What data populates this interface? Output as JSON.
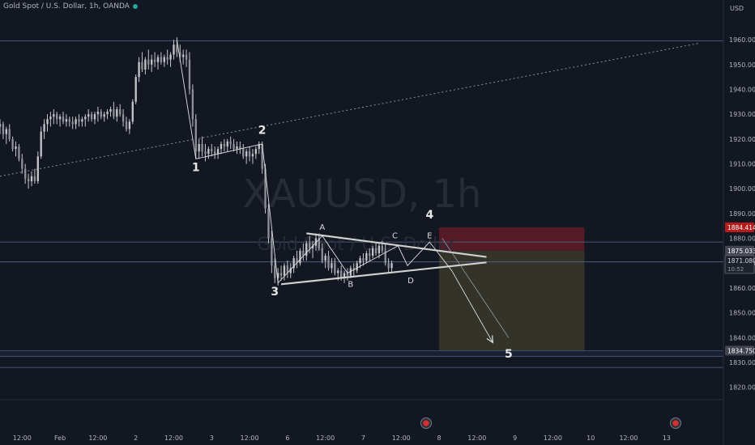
{
  "header": {
    "symbol_line": "Gold Spot / U.S. Dollar, 1h, OANDA"
  },
  "currency": "USD",
  "watermark": {
    "symbol": "XAUUSD, 1h",
    "description": "Gold Spot / U.S. Dollar"
  },
  "colors": {
    "background": "#131722",
    "candle": "#c4c4c8",
    "grid_line": "#5b6a8c",
    "stop_zone": "#6e1c2a",
    "target_zone": "#3a382b",
    "stop_tag": "#b71c1c",
    "pattern_line": "#d0d0d0",
    "wave_text": "#e6e6e6"
  },
  "chart_data": {
    "type": "candlestick",
    "title": "Gold Spot / U.S. Dollar, 1h, OANDA",
    "y_axis": {
      "unit": "USD",
      "ticks": [
        1820,
        1830,
        1840,
        1850,
        1860,
        1870,
        1880,
        1890,
        1900,
        1910,
        1920,
        1930,
        1940,
        1950,
        1960
      ],
      "tick_labels": [
        "1820.000",
        "1830.000",
        "1840.000",
        "1850.000",
        "1860.000",
        "1870.000",
        "1880.000",
        "1890.000",
        "1900.000",
        "1910.000",
        "1920.000",
        "1930.000",
        "1940.000",
        "1950.000",
        "1960.000"
      ],
      "range": [
        1815,
        1976
      ]
    },
    "x_axis": {
      "range": [
        0,
        229
      ],
      "ticks": [
        {
          "t": 7,
          "label": "12:00"
        },
        {
          "t": 19,
          "label": "Feb"
        },
        {
          "t": 31,
          "label": "12:00"
        },
        {
          "t": 43,
          "label": "2"
        },
        {
          "t": 55,
          "label": "12:00"
        },
        {
          "t": 67,
          "label": "3"
        },
        {
          "t": 79,
          "label": "12:00"
        },
        {
          "t": 91,
          "label": "6"
        },
        {
          "t": 103,
          "label": "12:00"
        },
        {
          "t": 115,
          "label": "7"
        },
        {
          "t": 127,
          "label": "12:00"
        },
        {
          "t": 139,
          "label": "8"
        },
        {
          "t": 151,
          "label": "12:00"
        },
        {
          "t": 163,
          "label": "9"
        },
        {
          "t": 175,
          "label": "12:00"
        },
        {
          "t": 187,
          "label": "10"
        },
        {
          "t": 199,
          "label": "12:00"
        },
        {
          "t": 211,
          "label": "13"
        }
      ]
    },
    "price_tags": [
      {
        "value": 1884.414,
        "label": "1884.414",
        "style": "stop"
      },
      {
        "value": 1875.033,
        "label": "1875.033",
        "style": "level"
      },
      {
        "value": 1871.08,
        "label": "1871.080",
        "sub": "10:52",
        "style": "last"
      },
      {
        "value": 1834.75,
        "label": "1834.750",
        "style": "target"
      }
    ],
    "horizontal_levels": [
      1959.5,
      1878.5,
      1870.5,
      1834.75,
      1832.5,
      1828.0
    ],
    "trendline": {
      "from": {
        "t": 0,
        "v": 1905
      },
      "to": {
        "t": 221,
        "v": 1958.5
      }
    },
    "position": {
      "t_start": 139,
      "t_end": 185,
      "entry": 1875.033,
      "stop": 1884.414,
      "target": 1834.75
    },
    "triangle": {
      "upper": [
        {
          "t": 97,
          "v": 1882
        },
        {
          "t": 154,
          "v": 1872.5
        }
      ],
      "lower": [
        {
          "t": 89,
          "v": 1861.5
        },
        {
          "t": 154,
          "v": 1870.3
        }
      ]
    },
    "wave_path": [
      {
        "t": 56,
        "v": 1960
      },
      {
        "t": 62,
        "v": 1912
      },
      {
        "t": 83,
        "v": 1918
      },
      {
        "t": 88,
        "v": 1862
      },
      {
        "t": 102,
        "v": 1881
      },
      {
        "t": 110,
        "v": 1866
      },
      {
        "t": 126,
        "v": 1877
      },
      {
        "t": 129,
        "v": 1869
      },
      {
        "t": 136,
        "v": 1878.5
      },
      {
        "t": 143,
        "v": 1867
      },
      {
        "t": 156,
        "v": 1838
      }
    ],
    "projection_line": {
      "from": {
        "t": 140,
        "v": 1880
      },
      "to": {
        "t": 161,
        "v": 1840
      }
    },
    "wave_labels": [
      {
        "text": "1",
        "t": 62,
        "v": 1907
      },
      {
        "text": "2",
        "t": 83,
        "v": 1922
      },
      {
        "text": "3",
        "t": 87,
        "v": 1857
      },
      {
        "text": "4",
        "t": 136,
        "v": 1888
      },
      {
        "text": "5",
        "t": 161,
        "v": 1832
      }
    ],
    "pattern_labels": [
      {
        "text": "A",
        "t": 102,
        "v": 1883.5
      },
      {
        "text": "B",
        "t": 111,
        "v": 1860.5
      },
      {
        "text": "C",
        "t": 125,
        "v": 1880
      },
      {
        "text": "D",
        "t": 130,
        "v": 1862
      },
      {
        "text": "E",
        "t": 136,
        "v": 1880
      }
    ],
    "series": [
      {
        "values": [
          [
            1925,
            1928,
            1922,
            1926
          ],
          [
            1926,
            1927,
            1920,
            1922
          ],
          [
            1922,
            1925,
            1918,
            1924
          ],
          [
            1924,
            1926,
            1919,
            1920
          ],
          [
            1920,
            1921,
            1915,
            1916
          ],
          [
            1916,
            1919,
            1913,
            1917
          ],
          [
            1917,
            1918,
            1911,
            1912
          ],
          [
            1912,
            1914,
            1906,
            1908
          ],
          [
            1908,
            1910,
            1902,
            1904
          ],
          [
            1904,
            1906,
            1900,
            1903
          ],
          [
            1903,
            1907,
            1901,
            1905
          ],
          [
            1905,
            1908,
            1902,
            1903
          ],
          [
            1903,
            1915,
            1902,
            1913
          ],
          [
            1913,
            1925,
            1912,
            1923
          ],
          [
            1923,
            1928,
            1920,
            1926
          ],
          [
            1926,
            1930,
            1923,
            1928
          ],
          [
            1928,
            1931,
            1925,
            1929
          ],
          [
            1929,
            1932,
            1926,
            1930
          ],
          [
            1930,
            1931,
            1926,
            1928
          ],
          [
            1928,
            1930,
            1925,
            1929
          ],
          [
            1929,
            1931,
            1926,
            1927
          ],
          [
            1927,
            1930,
            1925,
            1928
          ],
          [
            1928,
            1929,
            1925,
            1927
          ],
          [
            1927,
            1929,
            1924,
            1926
          ],
          [
            1926,
            1929,
            1924,
            1928
          ],
          [
            1928,
            1930,
            1925,
            1927
          ],
          [
            1927,
            1929,
            1925,
            1928
          ],
          [
            1928,
            1930,
            1925,
            1929
          ],
          [
            1929,
            1932,
            1927,
            1930
          ],
          [
            1930,
            1931,
            1927,
            1928
          ],
          [
            1928,
            1931,
            1926,
            1930
          ],
          [
            1930,
            1933,
            1927,
            1931
          ],
          [
            1931,
            1932,
            1928,
            1929
          ],
          [
            1929,
            1931,
            1927,
            1930
          ],
          [
            1930,
            1932,
            1928,
            1931
          ],
          [
            1931,
            1933,
            1929,
            1932
          ],
          [
            1932,
            1935,
            1928,
            1929
          ],
          [
            1929,
            1933,
            1927,
            1932
          ],
          [
            1932,
            1934,
            1929,
            1930
          ],
          [
            1930,
            1932,
            1925,
            1927
          ],
          [
            1927,
            1929,
            1923,
            1924
          ],
          [
            1924,
            1928,
            1922,
            1927
          ],
          [
            1927,
            1936,
            1926,
            1935
          ],
          [
            1935,
            1946,
            1934,
            1945
          ],
          [
            1945,
            1953,
            1943,
            1951
          ],
          [
            1951,
            1955,
            1947,
            1948
          ],
          [
            1948,
            1953,
            1946,
            1952
          ],
          [
            1952,
            1956,
            1948,
            1950
          ],
          [
            1950,
            1954,
            1947,
            1952
          ],
          [
            1952,
            1955,
            1949,
            1951
          ],
          [
            1951,
            1954,
            1948,
            1953
          ],
          [
            1953,
            1955,
            1950,
            1951
          ],
          [
            1951,
            1954,
            1949,
            1953
          ],
          [
            1953,
            1956,
            1950,
            1952
          ],
          [
            1952,
            1955,
            1949,
            1954
          ],
          [
            1954,
            1960,
            1952,
            1958
          ],
          [
            1958,
            1961,
            1953,
            1955
          ],
          [
            1955,
            1958,
            1951,
            1953
          ],
          [
            1953,
            1956,
            1950,
            1954
          ],
          [
            1954,
            1956,
            1949,
            1952
          ],
          [
            1952,
            1955,
            1938,
            1940
          ],
          [
            1940,
            1942,
            1925,
            1928
          ],
          [
            1928,
            1930,
            1912,
            1915
          ],
          [
            1915,
            1920,
            1912,
            1918
          ],
          [
            1918,
            1921,
            1913,
            1915
          ],
          [
            1915,
            1918,
            1911,
            1914
          ],
          [
            1914,
            1917,
            1912,
            1916
          ],
          [
            1916,
            1918,
            1913,
            1915
          ],
          [
            1915,
            1917,
            1912,
            1914
          ],
          [
            1914,
            1917,
            1912,
            1916
          ],
          [
            1916,
            1919,
            1914,
            1918
          ],
          [
            1918,
            1920,
            1915,
            1917
          ],
          [
            1917,
            1920,
            1915,
            1919
          ],
          [
            1919,
            1921,
            1916,
            1918
          ],
          [
            1918,
            1920,
            1915,
            1916
          ],
          [
            1916,
            1919,
            1914,
            1917
          ],
          [
            1917,
            1919,
            1914,
            1916
          ],
          [
            1916,
            1918,
            1912,
            1913
          ],
          [
            1913,
            1916,
            1910,
            1915
          ],
          [
            1915,
            1917,
            1911,
            1913
          ],
          [
            1913,
            1916,
            1910,
            1914
          ],
          [
            1914,
            1917,
            1912,
            1916
          ],
          [
            1916,
            1919,
            1914,
            1918
          ],
          [
            1918,
            1919,
            1906,
            1908
          ],
          [
            1908,
            1910,
            1890,
            1892
          ],
          [
            1892,
            1894,
            1878,
            1880
          ],
          [
            1880,
            1883,
            1866,
            1869
          ],
          [
            1869,
            1872,
            1862,
            1864
          ],
          [
            1864,
            1868,
            1861,
            1866
          ],
          [
            1866,
            1869,
            1863,
            1865
          ],
          [
            1865,
            1870,
            1863,
            1869
          ],
          [
            1869,
            1871,
            1864,
            1866
          ],
          [
            1866,
            1870,
            1864,
            1868
          ],
          [
            1868,
            1873,
            1866,
            1872
          ],
          [
            1872,
            1875,
            1868,
            1870
          ],
          [
            1870,
            1876,
            1869,
            1875
          ],
          [
            1875,
            1878,
            1871,
            1873
          ],
          [
            1873,
            1879,
            1871,
            1878
          ],
          [
            1878,
            1881,
            1874,
            1876
          ],
          [
            1876,
            1879,
            1872,
            1877
          ],
          [
            1877,
            1882,
            1875,
            1880
          ],
          [
            1880,
            1882,
            1875,
            1876
          ],
          [
            1876,
            1878,
            1870,
            1871
          ],
          [
            1871,
            1874,
            1868,
            1873
          ],
          [
            1873,
            1875,
            1867,
            1868
          ],
          [
            1868,
            1872,
            1866,
            1870
          ],
          [
            1870,
            1872,
            1865,
            1866
          ],
          [
            1866,
            1868,
            1863,
            1867
          ],
          [
            1867,
            1869,
            1863,
            1864
          ],
          [
            1864,
            1867,
            1862,
            1866
          ],
          [
            1866,
            1868,
            1863,
            1865
          ],
          [
            1865,
            1869,
            1864,
            1868
          ],
          [
            1868,
            1870,
            1865,
            1867
          ],
          [
            1867,
            1871,
            1866,
            1870
          ],
          [
            1870,
            1873,
            1868,
            1872
          ],
          [
            1872,
            1874,
            1869,
            1871
          ],
          [
            1871,
            1875,
            1870,
            1874
          ],
          [
            1874,
            1876,
            1871,
            1873
          ],
          [
            1873,
            1877,
            1872,
            1876
          ],
          [
            1876,
            1878,
            1873,
            1874
          ],
          [
            1874,
            1878,
            1872,
            1877
          ],
          [
            1877,
            1879,
            1874,
            1875
          ],
          [
            1875,
            1878,
            1869,
            1870
          ],
          [
            1870,
            1872,
            1866,
            1868
          ],
          [
            1868,
            1871,
            1866,
            1870
          ]
        ]
      }
    ]
  }
}
